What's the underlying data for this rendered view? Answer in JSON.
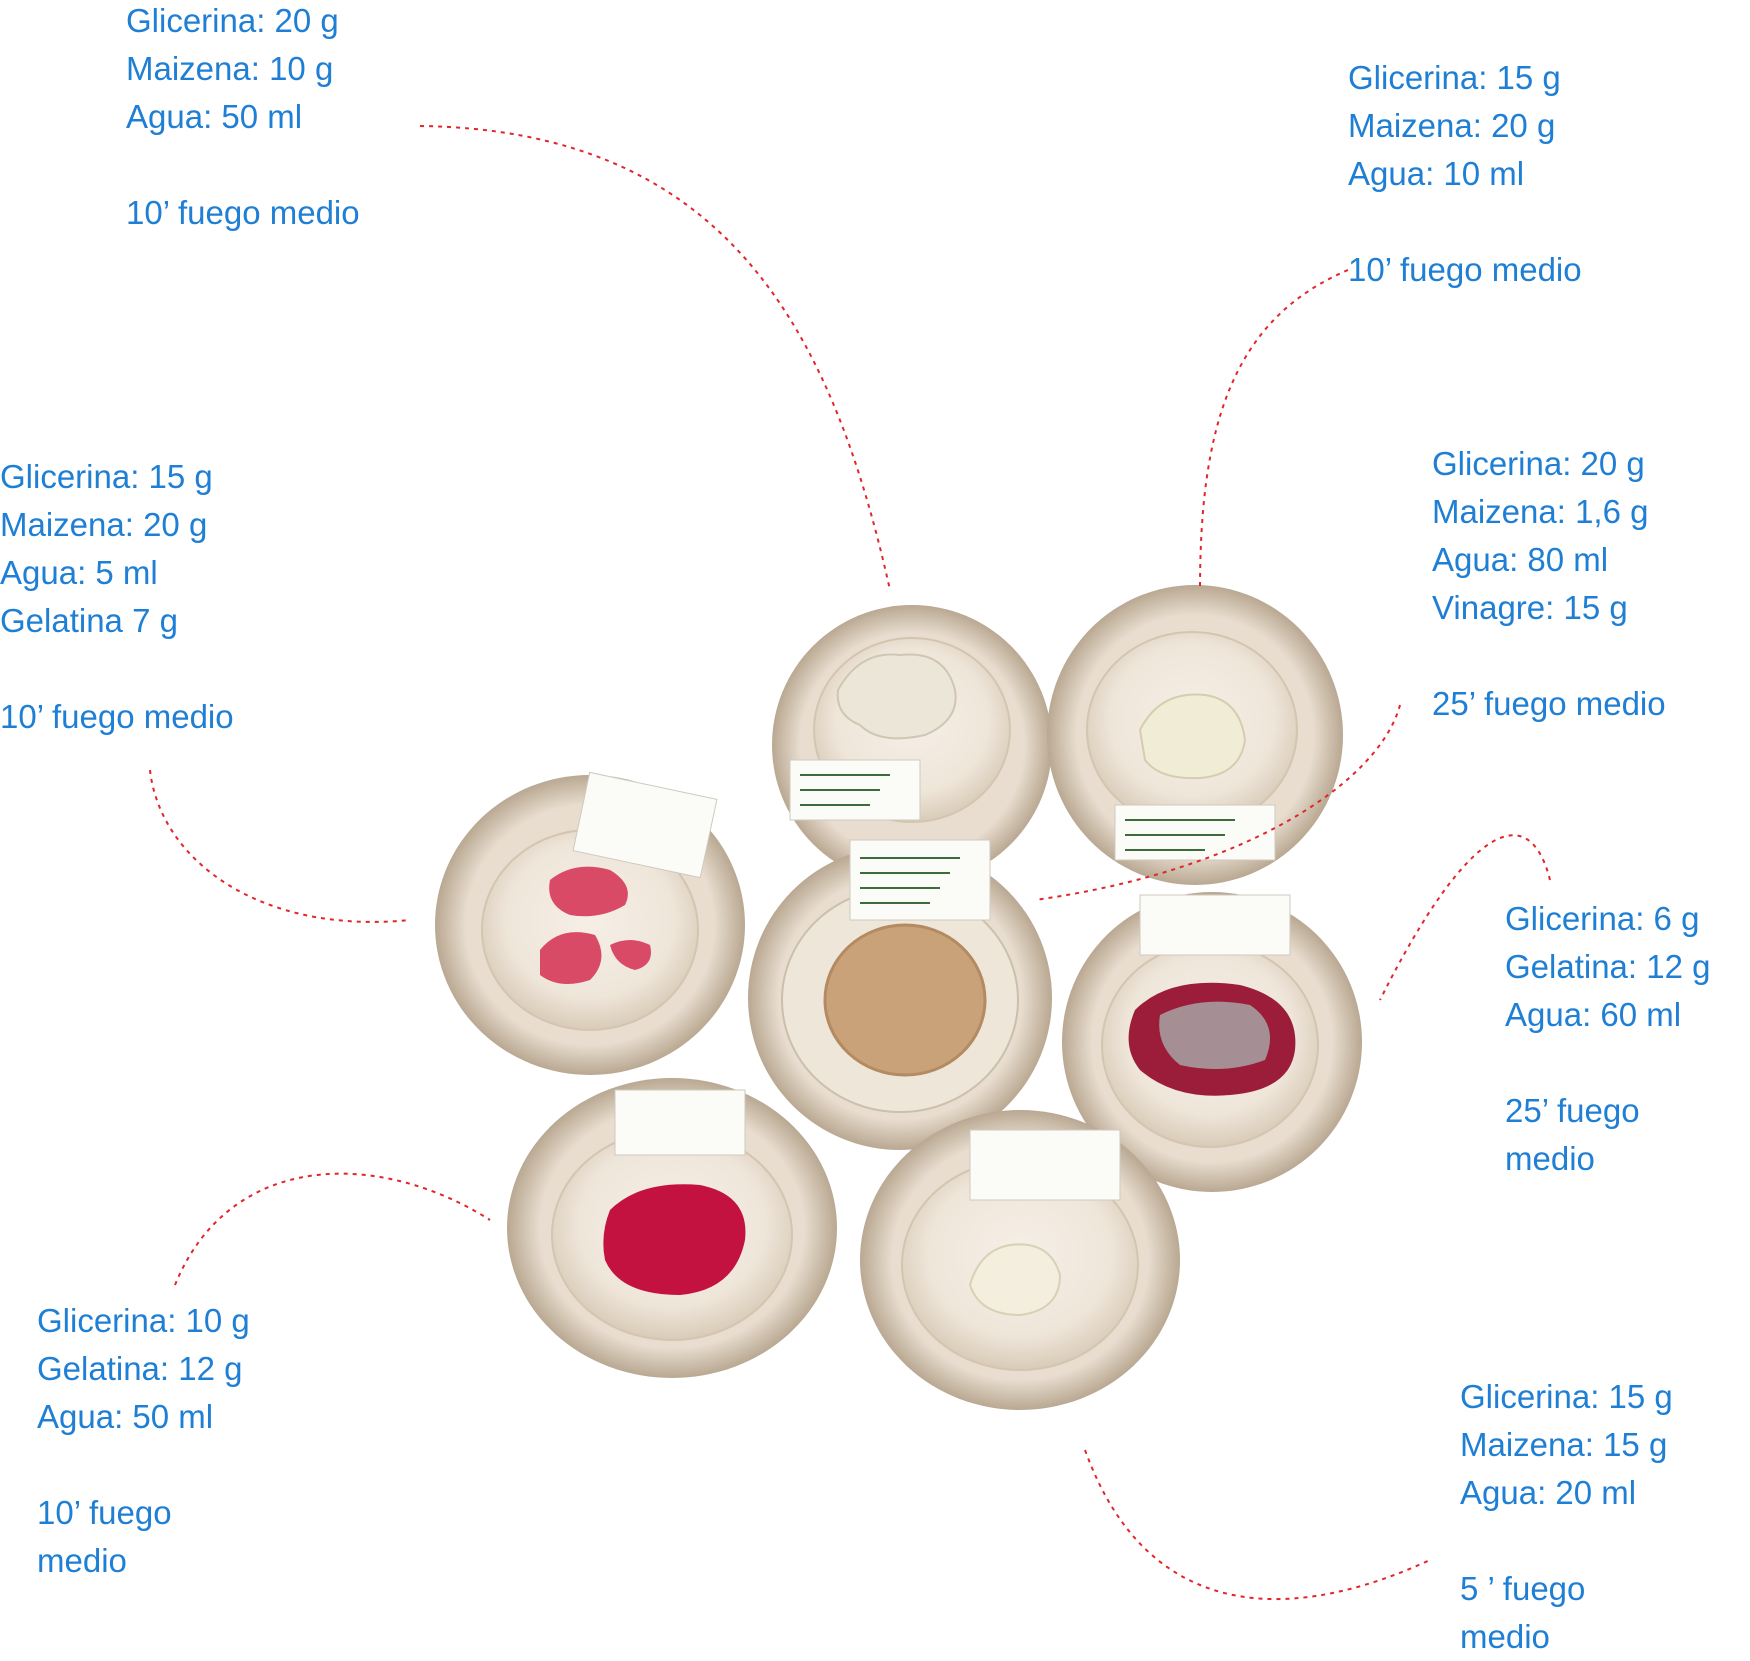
{
  "accent_color": "#1f7fd4",
  "connector_color": "#e0262b",
  "samples": {
    "top_left": {
      "ingredients": [
        "Glicerina: 20 g",
        "Maizena: 10 g",
        "Agua: 50 ml"
      ],
      "time": [
        "10’  fuego medio"
      ]
    },
    "top_right": {
      "ingredients": [
        "Glicerina: 15 g",
        "Maizena: 20 g",
        "Agua: 10 ml"
      ],
      "time": [
        "10’  fuego medio"
      ]
    },
    "mid_left": {
      "ingredients": [
        "Glicerina: 15 g",
        "Maizena: 20 g",
        "Agua: 5 ml",
        "Gelatina 7 g"
      ],
      "time": [
        "10’  fuego medio"
      ]
    },
    "mid_right": {
      "ingredients": [
        "Glicerina: 20 g",
        "Maizena: 1,6 g",
        "Agua: 80 ml",
        "Vinagre: 15 g"
      ],
      "time": [
        "25’  fuego medio"
      ]
    },
    "right": {
      "ingredients": [
        "Glicerina: 6 g",
        "Gelatina: 12 g",
        "Agua: 60 ml"
      ],
      "time": [
        "25’ fuego",
        "medio"
      ]
    },
    "bottom_left": {
      "ingredients": [
        "Glicerina: 10 g",
        "Gelatina: 12 g",
        "Agua: 50 ml"
      ],
      "time": [
        "10’ fuego",
        "medio"
      ]
    },
    "bottom_right": {
      "ingredients": [
        "Glicerina: 15 g",
        "Maizena: 15 g",
        "Agua: 20 ml"
      ],
      "time": [
        "5 ’ fuego",
        "medio"
      ]
    }
  },
  "plates": [
    {
      "id": "plate-1",
      "content": "white-crumbly-starch"
    },
    {
      "id": "plate-2",
      "content": "white-crumbly-starch"
    },
    {
      "id": "plate-3",
      "content": "pink-crumbly-gel"
    },
    {
      "id": "plate-4",
      "content": "amber-liquid"
    },
    {
      "id": "plate-5",
      "content": "dark-red-film"
    },
    {
      "id": "plate-6",
      "content": "red-liquid"
    },
    {
      "id": "plate-7",
      "content": "white-crumbly-starch"
    }
  ]
}
